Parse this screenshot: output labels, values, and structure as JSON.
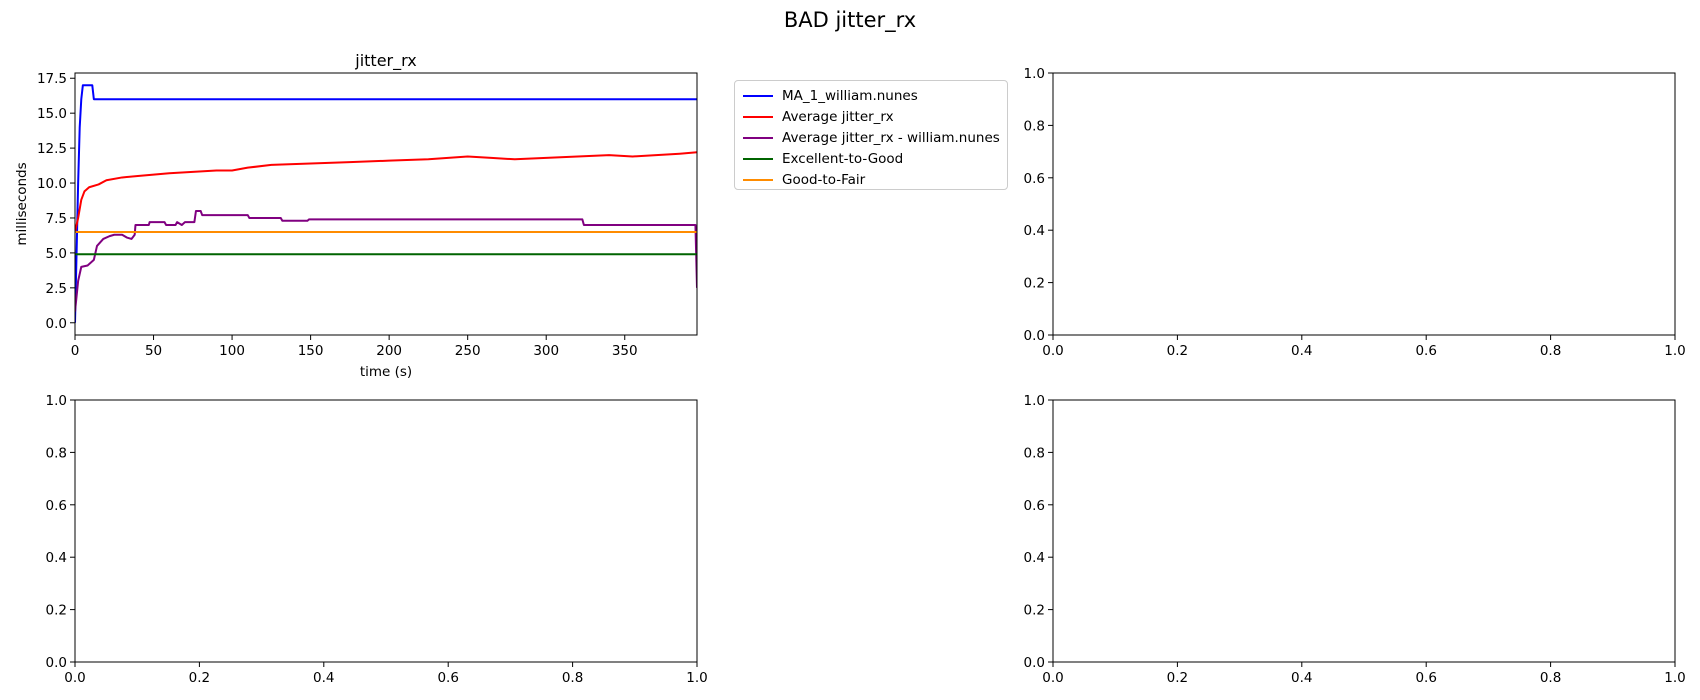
{
  "figure": {
    "suptitle": "BAD jitter_rx"
  },
  "chart_data": [
    {
      "type": "line",
      "title": "jitter_rx",
      "xlabel": "time (s)",
      "ylabel": "milliseconds",
      "xlim": [
        0,
        396
      ],
      "ylim": [
        -0.875,
        17.875
      ],
      "xticks": [
        0,
        50,
        100,
        150,
        200,
        250,
        300,
        350
      ],
      "yticks": [
        0.0,
        2.5,
        5.0,
        7.5,
        10.0,
        12.5,
        15.0,
        17.5
      ],
      "legend_position": "outside-right",
      "series": [
        {
          "name": "MA_1_william.nunes",
          "color": "#0000ff",
          "points": [
            [
              0,
              0
            ],
            [
              1,
              5
            ],
            [
              2,
              10
            ],
            [
              3,
              14
            ],
            [
              4,
              16
            ],
            [
              5,
              17
            ],
            [
              11,
              17
            ],
            [
              12,
              16
            ],
            [
              396,
              16
            ]
          ]
        },
        {
          "name": "Average jitter_rx",
          "color": "#ff0000",
          "points": [
            [
              0,
              6.5
            ],
            [
              2,
              7.5
            ],
            [
              4,
              8.8
            ],
            [
              6,
              9.4
            ],
            [
              9,
              9.7
            ],
            [
              15,
              9.9
            ],
            [
              20,
              10.2
            ],
            [
              30,
              10.4
            ],
            [
              40,
              10.5
            ],
            [
              50,
              10.6
            ],
            [
              60,
              10.7
            ],
            [
              75,
              10.8
            ],
            [
              90,
              10.9
            ],
            [
              100,
              10.9
            ],
            [
              110,
              11.1
            ],
            [
              125,
              11.3
            ],
            [
              150,
              11.4
            ],
            [
              175,
              11.5
            ],
            [
              200,
              11.6
            ],
            [
              225,
              11.7
            ],
            [
              250,
              11.9
            ],
            [
              265,
              11.8
            ],
            [
              280,
              11.7
            ],
            [
              300,
              11.8
            ],
            [
              320,
              11.9
            ],
            [
              340,
              12.0
            ],
            [
              355,
              11.9
            ],
            [
              370,
              12.0
            ],
            [
              385,
              12.1
            ],
            [
              396,
              12.2
            ]
          ]
        },
        {
          "name": "Average jitter_rx - william.nunes",
          "color": "#800080",
          "points": [
            [
              0,
              0.8
            ],
            [
              2,
              3
            ],
            [
              4,
              4
            ],
            [
              8,
              4.1
            ],
            [
              12,
              4.5
            ],
            [
              14,
              5.5
            ],
            [
              18,
              6
            ],
            [
              22,
              6.2
            ],
            [
              25,
              6.3
            ],
            [
              30,
              6.3
            ],
            [
              33,
              6.1
            ],
            [
              36,
              6
            ],
            [
              38,
              6.3
            ],
            [
              38.5,
              7
            ],
            [
              47,
              7
            ],
            [
              47.5,
              7.2
            ],
            [
              57,
              7.2
            ],
            [
              58,
              7
            ],
            [
              64,
              7
            ],
            [
              65,
              7.2
            ],
            [
              68,
              7
            ],
            [
              70,
              7.2
            ],
            [
              76,
              7.2
            ],
            [
              77,
              8
            ],
            [
              80,
              8
            ],
            [
              81,
              7.7
            ],
            [
              110,
              7.7
            ],
            [
              111,
              7.5
            ],
            [
              131,
              7.5
            ],
            [
              132,
              7.3
            ],
            [
              148,
              7.3
            ],
            [
              149,
              7.4
            ],
            [
              323,
              7.4
            ],
            [
              324,
              7.0
            ],
            [
              395,
              7.0
            ],
            [
              396,
              2.5
            ]
          ]
        },
        {
          "name": "Excellent-to-Good",
          "color": "#006400",
          "points": [
            [
              0,
              4.9
            ],
            [
              396,
              4.9
            ]
          ]
        },
        {
          "name": "Good-to-Fair",
          "color": "#ff8c00",
          "points": [
            [
              0,
              6.5
            ],
            [
              396,
              6.5
            ]
          ]
        }
      ]
    },
    {
      "type": "line",
      "title": "",
      "xlim": [
        0,
        1
      ],
      "ylim": [
        0,
        1
      ],
      "xticks": [
        0.0,
        0.2,
        0.4,
        0.6,
        0.8,
        1.0
      ],
      "yticks": [
        0.0,
        0.2,
        0.4,
        0.6,
        0.8,
        1.0
      ],
      "series": []
    },
    {
      "type": "line",
      "title": "",
      "xlim": [
        0,
        1
      ],
      "ylim": [
        0,
        1
      ],
      "xticks": [
        0.0,
        0.2,
        0.4,
        0.6,
        0.8,
        1.0
      ],
      "yticks": [
        0.0,
        0.2,
        0.4,
        0.6,
        0.8,
        1.0
      ],
      "series": []
    },
    {
      "type": "line",
      "title": "",
      "xlim": [
        0,
        1
      ],
      "ylim": [
        0,
        1
      ],
      "xticks": [
        0.0,
        0.2,
        0.4,
        0.6,
        0.8,
        1.0
      ],
      "yticks": [
        0.0,
        0.2,
        0.4,
        0.6,
        0.8,
        1.0
      ],
      "series": []
    }
  ]
}
